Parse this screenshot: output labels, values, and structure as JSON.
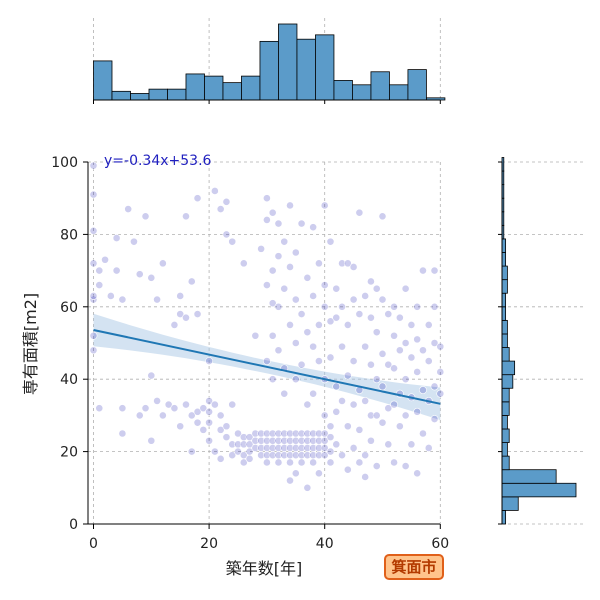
{
  "badge": "箕面市",
  "chart_data": {
    "type": "scatter",
    "xlabel": "築年数[年]",
    "ylabel": "専有面積[m2]",
    "xlim": [
      -1,
      60
    ],
    "ylim": [
      0,
      100
    ],
    "xticks": [
      0,
      20,
      40,
      60
    ],
    "yticks": [
      0,
      20,
      40,
      60,
      80,
      100
    ],
    "grid": true,
    "regression": {
      "label": "y=-0.34x+53.6",
      "slope": -0.34,
      "intercept": 53.6,
      "x_range": [
        0,
        60
      ],
      "ci_half_width_ends": 4.5,
      "ci_half_width_mid": 1.8
    },
    "colors": {
      "point": "#1a1ab0",
      "line": "#1f77b4",
      "band": "#a9c8e6",
      "hist": "#5b9bc9",
      "hist_edge": "#000000",
      "grid": "#b0b0b0"
    },
    "points": [
      [
        0,
        99
      ],
      [
        0,
        91
      ],
      [
        0,
        52
      ],
      [
        0,
        62
      ],
      [
        0,
        63
      ],
      [
        0,
        72
      ],
      [
        0,
        81
      ],
      [
        0,
        48
      ],
      [
        1,
        66
      ],
      [
        1,
        70
      ],
      [
        1,
        32
      ],
      [
        2,
        73
      ],
      [
        3,
        63
      ],
      [
        4,
        70
      ],
      [
        4,
        79
      ],
      [
        5,
        62
      ],
      [
        5,
        25
      ],
      [
        5,
        32
      ],
      [
        6,
        87
      ],
      [
        7,
        78
      ],
      [
        8,
        69
      ],
      [
        8,
        30
      ],
      [
        9,
        85
      ],
      [
        9,
        32
      ],
      [
        10,
        41
      ],
      [
        10,
        68
      ],
      [
        10,
        23
      ],
      [
        11,
        62
      ],
      [
        11,
        34
      ],
      [
        12,
        72
      ],
      [
        12,
        30
      ],
      [
        13,
        33
      ],
      [
        14,
        55
      ],
      [
        14,
        32
      ],
      [
        15,
        58
      ],
      [
        15,
        63
      ],
      [
        15,
        27
      ],
      [
        16,
        57
      ],
      [
        16,
        85
      ],
      [
        16,
        33
      ],
      [
        17,
        67
      ],
      [
        17,
        30
      ],
      [
        17,
        20
      ],
      [
        18,
        58
      ],
      [
        18,
        31
      ],
      [
        18,
        90
      ],
      [
        18,
        28
      ],
      [
        19,
        32
      ],
      [
        19,
        26
      ],
      [
        20,
        45
      ],
      [
        20,
        31
      ],
      [
        20,
        34
      ],
      [
        20,
        28
      ],
      [
        20,
        23
      ],
      [
        21,
        20
      ],
      [
        21,
        33
      ],
      [
        21,
        92
      ],
      [
        22,
        87
      ],
      [
        22,
        26
      ],
      [
        22,
        30
      ],
      [
        22,
        18
      ],
      [
        23,
        80
      ],
      [
        23,
        89
      ],
      [
        23,
        27
      ],
      [
        23,
        24
      ],
      [
        24,
        78
      ],
      [
        24,
        33
      ],
      [
        24,
        22
      ],
      [
        24,
        19
      ],
      [
        25,
        22
      ],
      [
        25,
        25
      ],
      [
        25,
        20
      ],
      [
        26,
        72
      ],
      [
        26,
        24
      ],
      [
        26,
        22
      ],
      [
        26,
        19
      ],
      [
        26,
        17
      ],
      [
        27,
        24
      ],
      [
        27,
        22
      ],
      [
        27,
        20
      ],
      [
        27,
        18
      ],
      [
        28,
        25
      ],
      [
        28,
        23
      ],
      [
        28,
        21
      ],
      [
        28,
        52
      ],
      [
        29,
        25
      ],
      [
        29,
        23
      ],
      [
        29,
        21
      ],
      [
        29,
        19
      ],
      [
        29,
        76
      ],
      [
        30,
        66
      ],
      [
        30,
        25
      ],
      [
        30,
        23
      ],
      [
        30,
        21
      ],
      [
        30,
        19
      ],
      [
        30,
        17
      ],
      [
        30,
        45
      ],
      [
        30,
        90
      ],
      [
        30,
        84
      ],
      [
        31,
        70
      ],
      [
        31,
        61
      ],
      [
        31,
        25
      ],
      [
        31,
        23
      ],
      [
        31,
        21
      ],
      [
        31,
        19
      ],
      [
        31,
        40
      ],
      [
        31,
        52
      ],
      [
        31,
        86
      ],
      [
        32,
        25
      ],
      [
        32,
        23
      ],
      [
        32,
        21
      ],
      [
        32,
        19
      ],
      [
        32,
        17
      ],
      [
        32,
        60
      ],
      [
        32,
        48
      ],
      [
        32,
        74
      ],
      [
        32,
        83
      ],
      [
        33,
        78
      ],
      [
        33,
        25
      ],
      [
        33,
        23
      ],
      [
        33,
        21
      ],
      [
        33,
        19
      ],
      [
        33,
        65
      ],
      [
        33,
        43
      ],
      [
        33,
        36
      ],
      [
        34,
        25
      ],
      [
        34,
        23
      ],
      [
        34,
        21
      ],
      [
        34,
        19
      ],
      [
        34,
        17
      ],
      [
        34,
        88
      ],
      [
        34,
        71
      ],
      [
        34,
        55
      ],
      [
        34,
        12
      ],
      [
        35,
        75
      ],
      [
        35,
        25
      ],
      [
        35,
        23
      ],
      [
        35,
        21
      ],
      [
        35,
        19
      ],
      [
        35,
        62
      ],
      [
        35,
        50
      ],
      [
        35,
        40
      ],
      [
        35,
        14
      ],
      [
        36,
        25
      ],
      [
        36,
        23
      ],
      [
        36,
        21
      ],
      [
        36,
        19
      ],
      [
        36,
        17
      ],
      [
        36,
        83
      ],
      [
        36,
        58
      ],
      [
        36,
        44
      ],
      [
        37,
        25
      ],
      [
        37,
        23
      ],
      [
        37,
        21
      ],
      [
        37,
        19
      ],
      [
        37,
        68
      ],
      [
        37,
        53
      ],
      [
        37,
        33
      ],
      [
        37,
        10
      ],
      [
        38,
        25
      ],
      [
        38,
        23
      ],
      [
        38,
        21
      ],
      [
        38,
        19
      ],
      [
        38,
        17
      ],
      [
        38,
        82
      ],
      [
        38,
        63
      ],
      [
        38,
        49
      ],
      [
        38,
        36
      ],
      [
        39,
        25
      ],
      [
        39,
        23
      ],
      [
        39,
        21
      ],
      [
        39,
        19
      ],
      [
        39,
        45
      ],
      [
        39,
        72
      ],
      [
        39,
        55
      ],
      [
        39,
        14
      ],
      [
        40,
        25
      ],
      [
        40,
        23
      ],
      [
        40,
        21
      ],
      [
        40,
        19
      ],
      [
        40,
        66
      ],
      [
        40,
        88
      ],
      [
        40,
        60
      ],
      [
        40,
        40
      ],
      [
        40,
        30
      ],
      [
        41,
        27
      ],
      [
        41,
        24
      ],
      [
        41,
        20
      ],
      [
        41,
        17
      ],
      [
        41,
        56
      ],
      [
        41,
        78
      ],
      [
        41,
        46
      ],
      [
        42,
        57
      ],
      [
        42,
        65
      ],
      [
        42,
        31
      ],
      [
        42,
        22
      ],
      [
        42,
        38
      ],
      [
        43,
        72
      ],
      [
        43,
        60
      ],
      [
        43,
        49
      ],
      [
        43,
        34
      ],
      [
        43,
        19
      ],
      [
        44,
        55
      ],
      [
        44,
        72
      ],
      [
        44,
        41
      ],
      [
        44,
        27
      ],
      [
        44,
        15
      ],
      [
        45,
        71
      ],
      [
        45,
        62
      ],
      [
        45,
        45
      ],
      [
        45,
        33
      ],
      [
        45,
        21
      ],
      [
        46,
        86
      ],
      [
        46,
        58
      ],
      [
        46,
        37
      ],
      [
        46,
        26
      ],
      [
        46,
        17
      ],
      [
        47,
        63
      ],
      [
        47,
        49
      ],
      [
        47,
        34
      ],
      [
        47,
        19
      ],
      [
        47,
        13
      ],
      [
        48,
        57
      ],
      [
        48,
        67
      ],
      [
        48,
        44
      ],
      [
        48,
        30
      ],
      [
        48,
        23
      ],
      [
        49,
        65
      ],
      [
        49,
        53
      ],
      [
        49,
        40
      ],
      [
        49,
        30
      ],
      [
        49,
        16
      ],
      [
        50,
        62
      ],
      [
        50,
        47
      ],
      [
        50,
        38
      ],
      [
        50,
        28
      ],
      [
        50,
        85
      ],
      [
        51,
        58
      ],
      [
        51,
        44
      ],
      [
        51,
        32
      ],
      [
        51,
        22
      ],
      [
        52,
        52
      ],
      [
        52,
        60
      ],
      [
        52,
        43
      ],
      [
        52,
        33
      ],
      [
        52,
        17
      ],
      [
        53,
        57
      ],
      [
        53,
        48
      ],
      [
        53,
        36
      ],
      [
        53,
        27
      ],
      [
        54,
        65
      ],
      [
        54,
        50
      ],
      [
        54,
        40
      ],
      [
        54,
        30
      ],
      [
        54,
        16
      ],
      [
        55,
        55
      ],
      [
        55,
        46
      ],
      [
        55,
        35
      ],
      [
        55,
        22
      ],
      [
        56,
        60
      ],
      [
        56,
        51
      ],
      [
        56,
        42
      ],
      [
        56,
        31
      ],
      [
        56,
        14
      ],
      [
        57,
        70
      ],
      [
        57,
        48
      ],
      [
        57,
        37
      ],
      [
        57,
        25
      ],
      [
        58,
        55
      ],
      [
        58,
        45
      ],
      [
        58,
        34
      ],
      [
        58,
        21
      ],
      [
        59,
        60
      ],
      [
        59,
        50
      ],
      [
        59,
        38
      ],
      [
        59,
        29
      ],
      [
        59,
        70
      ],
      [
        60,
        49
      ],
      [
        60,
        42
      ],
      [
        60,
        36
      ]
    ],
    "x_histogram": {
      "bin_start": 0,
      "bin_width": 3.2,
      "counts": [
        18,
        4,
        3,
        5,
        5,
        12,
        11,
        8,
        11,
        27,
        35,
        28,
        30,
        9,
        7,
        13,
        7,
        14,
        1
      ]
    },
    "y_histogram": {
      "bin_start": 0,
      "bin_width": 3.75,
      "counts": [
        2,
        9,
        41,
        30,
        4,
        3,
        4,
        3,
        4,
        4,
        6,
        7,
        4,
        3,
        3,
        2,
        2,
        3,
        3,
        2,
        2,
        1,
        1,
        1,
        1,
        1,
        1
      ]
    }
  }
}
